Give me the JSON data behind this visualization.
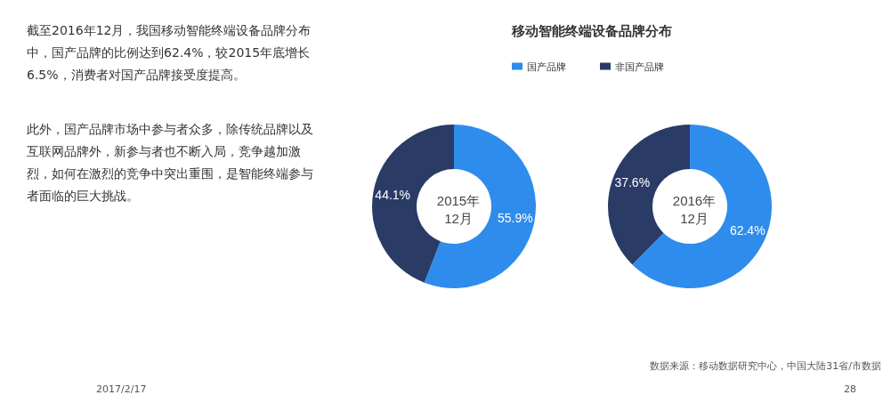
{
  "chart_data": {
    "type": "donut",
    "title": "移动智能终端设备品牌分布",
    "legend": "top",
    "categories": [
      "国产品牌",
      "非国产品牌"
    ],
    "series": [
      {
        "name": "2015年\n12月",
        "colors": [
          "#2e8cec",
          "#2a3b66"
        ],
        "values": [
          55.9,
          44.1
        ],
        "value_labels": [
          "55.9%",
          "44.1%"
        ]
      },
      {
        "name": "2016年\n12月",
        "colors": [
          "#2e8cec",
          "#2a3b66"
        ],
        "values": [
          62.4,
          37.6
        ],
        "value_labels": [
          "62.4%",
          "37.6%"
        ]
      }
    ],
    "annotations": [
      "截至2016年12月，我国移动智能终端设备品牌分布中，国产品牌的比例达到62.4%，较2015年底增长6.5%，消费者对国产品牌接受度提高。",
      "此外，国产品牌市场中参与者众多，除传统品牌以及互联网品牌外，新参与者也不断入局，竞争越加激烈，如何在激烈的竞争中突出重围，是智能终端参与者面临的巨大挑战。",
      "数据来源：移动数据研究中心，中国大陆31省/市数据",
      "2017/2/17",
      "28"
    ]
  }
}
